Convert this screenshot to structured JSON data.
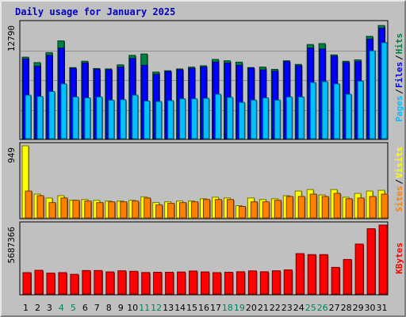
{
  "title": "Daily usage for January 2025",
  "colors": {
    "hits": "#008040",
    "files": "#0000ff",
    "pages": "#00c0ff",
    "visits": "#ffff00",
    "sites": "#ff8000",
    "kbytes": "#ff0000",
    "background": "#c0c0c0",
    "weekend_label": "#00805c",
    "weekday_label": "#000000"
  },
  "chart_data": [
    {
      "type": "bar",
      "panel": "hits-files-pages",
      "ytick_label": "12790",
      "ylim": [
        0,
        12790
      ],
      "legend": [
        "Pages",
        "/",
        "Files",
        "/",
        "Hits"
      ],
      "categories": [
        "1",
        "2",
        "3",
        "4",
        "5",
        "6",
        "7",
        "8",
        "9",
        "10",
        "11",
        "12",
        "13",
        "14",
        "15",
        "16",
        "17",
        "18",
        "19",
        "20",
        "21",
        "22",
        "23",
        "24",
        "25",
        "26",
        "27",
        "28",
        "29",
        "30",
        "31"
      ],
      "series": [
        {
          "name": "Hits",
          "values": [
            9100,
            8500,
            9600,
            10900,
            7950,
            8650,
            7850,
            7800,
            8250,
            9300,
            9450,
            7450,
            7600,
            7800,
            8000,
            8150,
            8850,
            8700,
            8550,
            7950,
            8000,
            7750,
            8700,
            8300,
            10500,
            10600,
            9350,
            8650,
            8800,
            11400,
            12600
          ]
        },
        {
          "name": "Files",
          "values": [
            8900,
            8100,
            9300,
            10100,
            7850,
            8450,
            7750,
            7700,
            8000,
            8950,
            8200,
            7200,
            7500,
            7700,
            7850,
            8000,
            8550,
            8450,
            8200,
            7900,
            7700,
            7550,
            8600,
            8150,
            10100,
            10000,
            9200,
            8500,
            8600,
            11100,
            12300
          ]
        },
        {
          "name": "Pages",
          "values": [
            4900,
            4750,
            5300,
            6150,
            4700,
            4600,
            4700,
            4350,
            4400,
            4900,
            4250,
            4200,
            4300,
            4500,
            4500,
            4550,
            5000,
            4650,
            4100,
            4350,
            4600,
            4350,
            4700,
            4700,
            6300,
            6400,
            6150,
            5000,
            6450,
            9800,
            10700
          ]
        }
      ],
      "weekend_days": [
        4,
        5,
        11,
        12,
        18,
        19,
        25,
        26
      ]
    },
    {
      "type": "bar",
      "panel": "visits-sites",
      "ytick_label": "949",
      "ylim": [
        0,
        949
      ],
      "legend": [
        "Sites",
        "/",
        "Visits"
      ],
      "categories": [
        "1",
        "2",
        "3",
        "4",
        "5",
        "6",
        "7",
        "8",
        "9",
        "10",
        "11",
        "12",
        "13",
        "14",
        "15",
        "16",
        "17",
        "18",
        "19",
        "20",
        "21",
        "22",
        "23",
        "24",
        "25",
        "26",
        "27",
        "28",
        "29",
        "30",
        "31"
      ],
      "series": [
        {
          "name": "Visits",
          "values": [
            949,
            320,
            270,
            300,
            240,
            250,
            240,
            230,
            230,
            240,
            285,
            210,
            220,
            230,
            230,
            260,
            280,
            270,
            170,
            270,
            250,
            260,
            300,
            360,
            380,
            310,
            380,
            280,
            330,
            360,
            370
          ]
        },
        {
          "name": "Sites",
          "values": [
            360,
            300,
            210,
            270,
            240,
            230,
            210,
            220,
            220,
            230,
            270,
            180,
            200,
            210,
            220,
            250,
            250,
            250,
            160,
            220,
            220,
            240,
            290,
            290,
            320,
            290,
            330,
            260,
            270,
            290,
            320
          ]
        }
      ]
    },
    {
      "type": "bar",
      "panel": "kbytes",
      "ytick_label": "5687366",
      "ylim": [
        0,
        5687366
      ],
      "legend": [
        "KBytes"
      ],
      "categories": [
        "1",
        "2",
        "3",
        "4",
        "5",
        "6",
        "7",
        "8",
        "9",
        "10",
        "11",
        "12",
        "13",
        "14",
        "15",
        "16",
        "17",
        "18",
        "19",
        "20",
        "21",
        "22",
        "23",
        "24",
        "25",
        "26",
        "27",
        "28",
        "29",
        "30",
        "31"
      ],
      "series": [
        {
          "name": "KBytes",
          "values": [
            1810000,
            2000000,
            1770000,
            1810000,
            1670000,
            1980000,
            1980000,
            1870000,
            1960000,
            1920000,
            1820000,
            1840000,
            1840000,
            1860000,
            1940000,
            1870000,
            1810000,
            1840000,
            1880000,
            1950000,
            1880000,
            1960000,
            2030000,
            3360000,
            3280000,
            3280000,
            2240000,
            2880000,
            4140000,
            5390000,
            5687366
          ]
        }
      ]
    }
  ]
}
